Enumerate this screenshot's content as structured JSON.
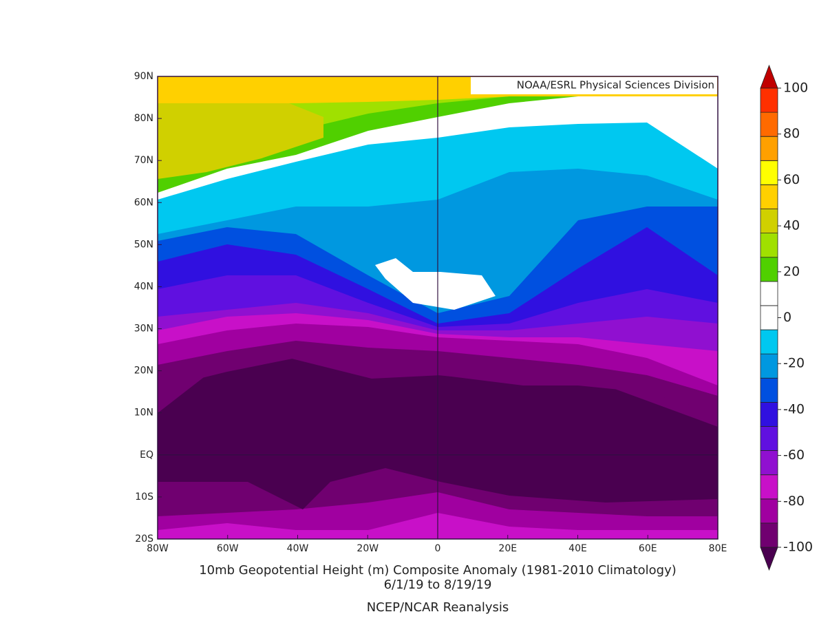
{
  "map": {
    "credit": "NOAA/ESRL Physical Sciences Division",
    "title": "10mb Geopotential Height (m) Composite Anomaly (1981-2010 Climatology)",
    "dates": "6/1/19  to 8/19/19",
    "source": "NCEP/NCAR Reanalysis",
    "xlim": [
      -80,
      80
    ],
    "ylim": [
      -20,
      90
    ],
    "xticks": [
      {
        "value": -80,
        "label": "80W"
      },
      {
        "value": -60,
        "label": "60W"
      },
      {
        "value": -40,
        "label": "40W"
      },
      {
        "value": -20,
        "label": "20W"
      },
      0,
      {
        "value": 20,
        "label": "20E"
      },
      {
        "value": 40,
        "label": "40E"
      },
      {
        "value": 60,
        "label": "60E"
      },
      {
        "value": 80,
        "label": "80E"
      }
    ],
    "yticks": [
      {
        "value": 90,
        "label": "90N"
      },
      {
        "value": 80,
        "label": "80N"
      },
      {
        "value": 70,
        "label": "70N"
      },
      {
        "value": 60,
        "label": "60N"
      },
      {
        "value": 50,
        "label": "50N"
      },
      {
        "value": 40,
        "label": "40N"
      },
      {
        "value": 30,
        "label": "30N"
      },
      {
        "value": 20,
        "label": "20N"
      },
      {
        "value": 10,
        "label": "10N"
      },
      {
        "value": 0,
        "label": "EQ"
      },
      {
        "value": -10,
        "label": "10S"
      },
      {
        "value": -20,
        "label": "20S"
      }
    ],
    "colorbar": {
      "lim": [
        -100,
        100
      ],
      "ticks": [
        100,
        80,
        60,
        40,
        20,
        0,
        -20,
        -40,
        -60,
        -80,
        -100
      ],
      "colors": [
        "#4a0050",
        "#700070",
        "#a000a0",
        "#c810c8",
        "#9010d0",
        "#6010e0",
        "#3010e0",
        "#0050e0",
        "#0098e0",
        "#00c8f0",
        "#ffffff",
        "#ffffff",
        "#50d000",
        "#a0e000",
        "#d0d000",
        "#ffd000",
        "#ffff00",
        "#ffa000",
        "#ff6a00",
        "#ff3000",
        "#c00000"
      ]
    }
  }
}
